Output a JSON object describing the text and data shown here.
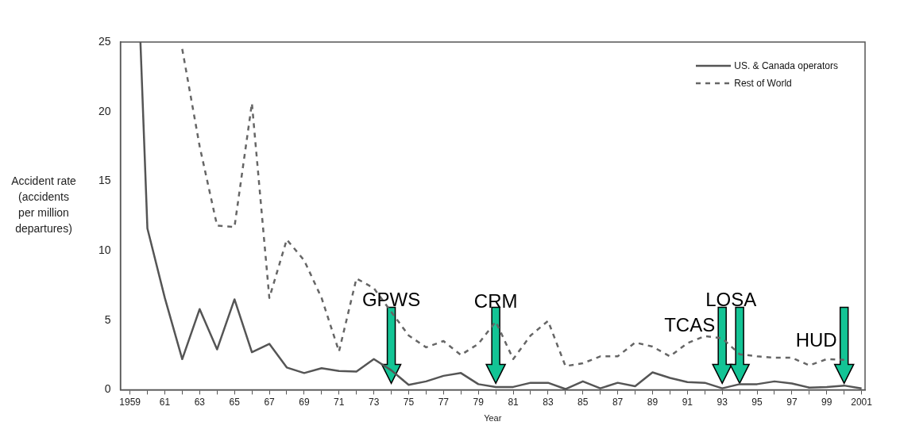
{
  "chart_data": {
    "type": "line",
    "xlabel": "Year",
    "ylabel": "Accident rate (accidents per million departures)",
    "series": [
      {
        "name": "US. & Canada operators",
        "color": "#555555",
        "line_style": "solid",
        "x": [
          1959.6,
          1960,
          1961,
          1962,
          1963,
          1964,
          1965,
          1966,
          1967,
          1968,
          1969,
          1970,
          1971,
          1972,
          1973,
          1974,
          1975,
          1976,
          1977,
          1978,
          1979,
          1980,
          1981,
          1982,
          1983,
          1984,
          1985,
          1986,
          1987,
          1988,
          1989,
          1990,
          1991,
          1992,
          1993,
          1994,
          1995,
          1996,
          1997,
          1998,
          1999,
          2000,
          2001
        ],
        "values": [
          25,
          11.6,
          6.6,
          2.2,
          5.8,
          2.9,
          6.5,
          2.7,
          3.3,
          1.6,
          1.2,
          1.55,
          1.35,
          1.3,
          2.2,
          1.4,
          0.35,
          0.6,
          1.0,
          1.2,
          0.4,
          0.2,
          0.2,
          0.5,
          0.5,
          0.05,
          0.6,
          0.1,
          0.5,
          0.25,
          1.25,
          0.85,
          0.55,
          0.5,
          0.1,
          0.4,
          0.4,
          0.6,
          0.45,
          0.15,
          0.2,
          0.3,
          0.1
        ]
      },
      {
        "name": "Rest of World",
        "color": "#666666",
        "line_style": "dashed",
        "x": [
          1962,
          1963,
          1964,
          1965,
          1966,
          1967,
          1968,
          1969,
          1970,
          1971,
          1972,
          1973,
          1974,
          1975,
          1976,
          1977,
          1978,
          1979,
          1980,
          1981,
          1982,
          1983,
          1984,
          1985,
          1986,
          1987,
          1988,
          1989,
          1990,
          1991,
          1992,
          1993,
          1994,
          1995,
          1996,
          1997,
          1998,
          1999,
          2000
        ],
        "values": [
          24.5,
          17.5,
          11.8,
          11.7,
          20.6,
          6.6,
          10.8,
          9.3,
          6.6,
          2.75,
          8.0,
          7.3,
          5.6,
          3.9,
          3.05,
          3.5,
          2.5,
          3.3,
          4.9,
          2.2,
          3.9,
          4.95,
          1.7,
          1.9,
          2.4,
          2.4,
          3.4,
          3.1,
          2.4,
          3.35,
          3.85,
          3.7,
          2.55,
          2.4,
          2.3,
          2.3,
          1.75,
          2.2,
          2.15
        ]
      }
    ],
    "xlim": [
      1958.45,
      2001.2
    ],
    "xticks": [
      {
        "value": 1959,
        "label": "1959"
      },
      {
        "value": 1960,
        "label": null
      },
      {
        "value": 1961,
        "label": "61"
      },
      {
        "value": 1962,
        "label": null
      },
      {
        "value": 1963,
        "label": "63"
      },
      {
        "value": 1964,
        "label": null
      },
      {
        "value": 1965,
        "label": "65"
      },
      {
        "value": 1966,
        "label": null
      },
      {
        "value": 1967,
        "label": "67"
      },
      {
        "value": 1968,
        "label": null
      },
      {
        "value": 1969,
        "label": "69"
      },
      {
        "value": 1970,
        "label": null
      },
      {
        "value": 1971,
        "label": "71"
      },
      {
        "value": 1972,
        "label": null
      },
      {
        "value": 1973,
        "label": "73"
      },
      {
        "value": 1974,
        "label": null
      },
      {
        "value": 1975,
        "label": "75"
      },
      {
        "value": 1976,
        "label": null
      },
      {
        "value": 1977,
        "label": "77"
      },
      {
        "value": 1978,
        "label": null
      },
      {
        "value": 1979,
        "label": "79"
      },
      {
        "value": 1980,
        "label": null
      },
      {
        "value": 1981,
        "label": "81"
      },
      {
        "value": 1982,
        "label": null
      },
      {
        "value": 1983,
        "label": "83"
      },
      {
        "value": 1984,
        "label": null
      },
      {
        "value": 1985,
        "label": "85"
      },
      {
        "value": 1986,
        "label": null
      },
      {
        "value": 1987,
        "label": "87"
      },
      {
        "value": 1988,
        "label": null
      },
      {
        "value": 1989,
        "label": "89"
      },
      {
        "value": 1990,
        "label": null
      },
      {
        "value": 1991,
        "label": "91"
      },
      {
        "value": 1992,
        "label": null
      },
      {
        "value": 1993,
        "label": "93"
      },
      {
        "value": 1994,
        "label": null
      },
      {
        "value": 1995,
        "label": "95"
      },
      {
        "value": 1996,
        "label": null
      },
      {
        "value": 1997,
        "label": "97"
      },
      {
        "value": 1998,
        "label": null
      },
      {
        "value": 1999,
        "label": "99"
      },
      {
        "value": 2000,
        "label": null
      },
      {
        "value": 2001,
        "label": "2001"
      }
    ],
    "ylim": [
      0,
      25
    ],
    "yticks": [
      0,
      5,
      10,
      15,
      20,
      25
    ],
    "grid": false,
    "legend": "top right",
    "marker": "none",
    "annotations": [
      {
        "text": "GPWS",
        "x": 1974,
        "y": 5.6
      },
      {
        "text": "CRM",
        "x": 1980,
        "y": 4.9
      },
      {
        "text": "TCAS",
        "x": 1993,
        "y": 3.7
      },
      {
        "text": "LOSA",
        "x": 1994,
        "y": 2.55
      },
      {
        "text": "HUD",
        "x": 2000,
        "y": 2.15
      }
    ]
  }
}
